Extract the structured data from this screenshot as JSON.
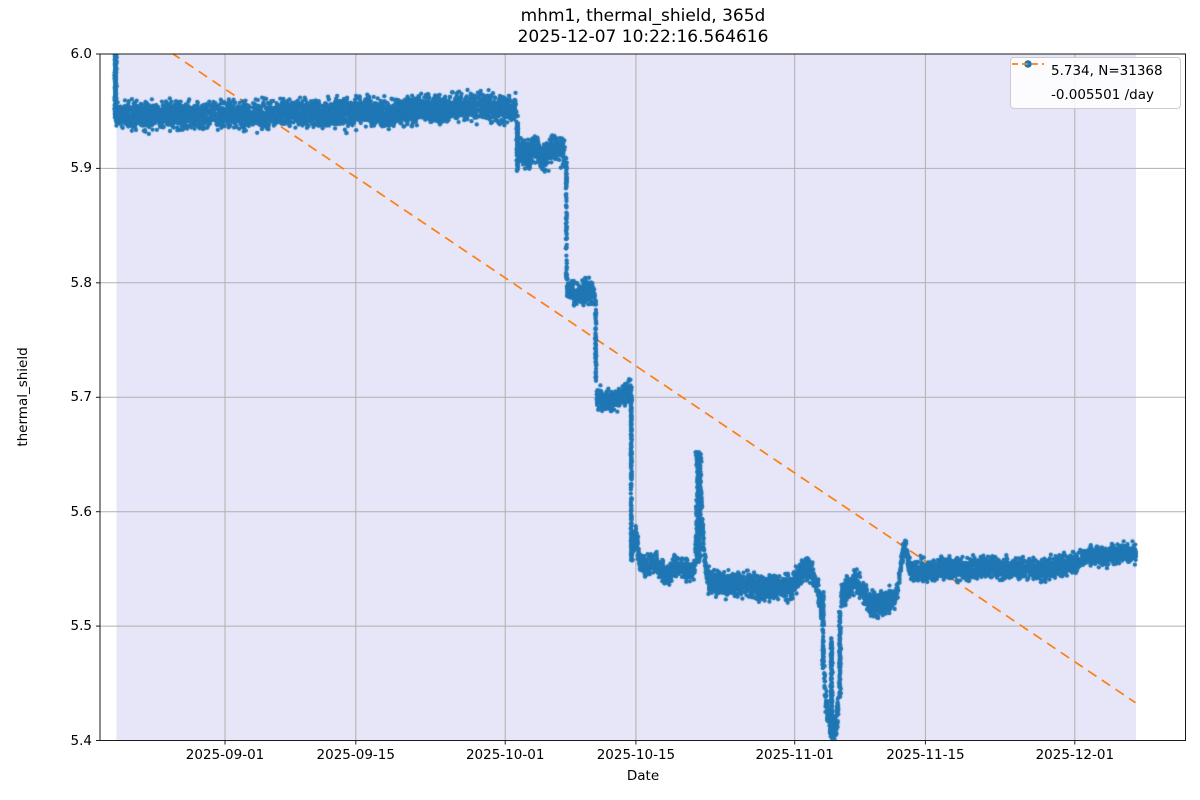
{
  "title": {
    "line1": "mhm1, thermal_shield, 365d",
    "line2": "2025-12-07 10:22:16.564616"
  },
  "axes": {
    "x_label": "Date",
    "y_label": "thermal_shield",
    "x_ticks": [
      {
        "t": 0,
        "label": "2025-09-01"
      },
      {
        "t": 14,
        "label": "2025-09-15"
      },
      {
        "t": 30,
        "label": "2025-10-01"
      },
      {
        "t": 44,
        "label": "2025-10-15"
      },
      {
        "t": 61,
        "label": "2025-11-01"
      },
      {
        "t": 75,
        "label": "2025-11-15"
      },
      {
        "t": 91,
        "label": "2025-12-01"
      }
    ],
    "y_ticks": [
      {
        "v": 5.4,
        "label": "5.4"
      },
      {
        "v": 5.5,
        "label": "5.5"
      },
      {
        "v": 5.6,
        "label": "5.6"
      },
      {
        "v": 5.7,
        "label": "5.7"
      },
      {
        "v": 5.8,
        "label": "5.8"
      },
      {
        "v": 5.9,
        "label": "5.9"
      },
      {
        "v": 6.0,
        "label": "6.0"
      }
    ]
  },
  "legend": {
    "items": [
      {
        "label": "5.734, N=31368",
        "marker": "dot-marker"
      },
      {
        "label": "-0.005501 /day",
        "marker": "dashed-line-marker"
      }
    ]
  },
  "chart_data": {
    "type": "scatter",
    "title": "mhm1, thermal_shield, 365d",
    "subtitle": "2025-12-07 10:22:16.564616",
    "xlabel": "Date",
    "ylabel": "thermal_shield",
    "series_mean": 5.734,
    "n_points": 31368,
    "x_domain": {
      "unit": "days_since_2025-09-01",
      "min": -13.39,
      "max": 102.85
    },
    "y_domain": {
      "min": 5.4,
      "max": 6.0
    },
    "grid": true,
    "data_span": {
      "t0": -11.62,
      "t1": 97.55
    },
    "trend": {
      "slope_per_day": -0.005501,
      "t_start": -11.6,
      "v_start": 6.0332,
      "t_end": 97.5,
      "v_end": 5.433
    },
    "colors": {
      "series": "#1f77b4",
      "trend": "#ff7f0e",
      "span_shade": "#e6e6f8",
      "grid": "#b0b0b0",
      "spine": "#1a1a1a"
    },
    "segments": [
      {
        "kind": "vline",
        "t": -11.72,
        "v_lo": 5.944,
        "v_hi": 6.001,
        "jitter": 0.1,
        "n": 280
      },
      {
        "kind": "band",
        "noise": 0.0085,
        "path": [
          [
            -11.68,
            5.9475
          ],
          [
            -9,
            5.9455
          ],
          [
            -6,
            5.9475
          ],
          [
            -3,
            5.9455
          ],
          [
            0,
            5.9485
          ],
          [
            3,
            5.9465
          ],
          [
            6,
            5.9495
          ],
          [
            9,
            5.9475
          ],
          [
            12,
            5.949
          ],
          [
            15,
            5.9505
          ],
          [
            18,
            5.9485
          ],
          [
            21,
            5.9525
          ],
          [
            24,
            5.9515
          ],
          [
            27,
            5.9545
          ],
          [
            29.5,
            5.9525
          ],
          [
            31.2,
            5.9535
          ]
        ]
      },
      {
        "kind": "vline",
        "t": 31.3,
        "v_lo": 5.897,
        "v_hi": 5.946,
        "jitter": 0.08,
        "n": 100
      },
      {
        "kind": "band",
        "noise": 0.0085,
        "path": [
          [
            31.4,
            5.9195
          ],
          [
            32.3,
            5.91
          ],
          [
            33.2,
            5.918
          ],
          [
            34.1,
            5.909
          ],
          [
            35.2,
            5.92
          ],
          [
            36.4,
            5.915
          ]
        ]
      },
      {
        "kind": "vline",
        "t": 36.55,
        "v_lo": 5.803,
        "v_hi": 5.91,
        "jitter": 0.06,
        "n": 80
      },
      {
        "kind": "band",
        "noise": 0.0072,
        "path": [
          [
            36.6,
            5.796
          ],
          [
            37.6,
            5.79
          ],
          [
            38.6,
            5.793
          ],
          [
            39.6,
            5.791
          ]
        ]
      },
      {
        "kind": "vline",
        "t": 39.7,
        "v_lo": 5.714,
        "v_hi": 5.786,
        "jitter": 0.06,
        "n": 65
      },
      {
        "kind": "band",
        "noise": 0.0068,
        "path": [
          [
            39.78,
            5.7
          ],
          [
            41,
            5.6965
          ],
          [
            42.2,
            5.6995
          ],
          [
            43.1,
            5.703
          ],
          [
            43.42,
            5.706
          ]
        ]
      },
      {
        "kind": "vline",
        "t": 43.5,
        "v_lo": 5.557,
        "v_hi": 5.709,
        "jitter": 0.06,
        "n": 170
      },
      {
        "kind": "band",
        "noise": 0.0065,
        "path": [
          [
            43.56,
            5.563
          ],
          [
            43.95,
            5.581
          ],
          [
            44.35,
            5.56
          ],
          [
            45.1,
            5.5515
          ],
          [
            46.2,
            5.555
          ],
          [
            47.2,
            5.544
          ],
          [
            48.2,
            5.552
          ],
          [
            49.3,
            5.548
          ],
          [
            50.3,
            5.55
          ]
        ]
      },
      {
        "kind": "vline",
        "t": 50.72,
        "v_lo": 5.556,
        "v_hi": 5.652,
        "jitter": 0.26,
        "n": 340
      },
      {
        "kind": "band",
        "noise": 0.0058,
        "path": [
          [
            50.35,
            5.56
          ],
          [
            50.72,
            5.64
          ],
          [
            51.0,
            5.608
          ],
          [
            51.35,
            5.558
          ],
          [
            51.65,
            5.542
          ]
        ]
      },
      {
        "kind": "band",
        "noise": 0.0075,
        "path": [
          [
            51.7,
            5.539
          ],
          [
            53.5,
            5.5365
          ],
          [
            55.5,
            5.5355
          ],
          [
            57.5,
            5.534
          ],
          [
            59.5,
            5.533
          ],
          [
            60.8,
            5.5345
          ],
          [
            61.6,
            5.5465
          ],
          [
            62.3,
            5.551
          ],
          [
            62.9,
            5.545
          ],
          [
            63.5,
            5.534
          ],
          [
            63.9,
            5.51
          ]
        ]
      },
      {
        "kind": "vline",
        "t": 64.05,
        "v_lo": 5.465,
        "v_hi": 5.53,
        "jitter": 0.07,
        "n": 90
      },
      {
        "kind": "band",
        "noise": 0.01,
        "path": [
          [
            64.0,
            5.475
          ],
          [
            64.4,
            5.428
          ],
          [
            64.9,
            5.408
          ],
          [
            65.4,
            5.412
          ],
          [
            65.7,
            5.435
          ]
        ]
      },
      {
        "kind": "vline",
        "t": 64.95,
        "v_lo": 5.401,
        "v_hi": 5.49,
        "jitter": 0.1,
        "n": 130
      },
      {
        "kind": "vline",
        "t": 65.85,
        "v_lo": 5.438,
        "v_hi": 5.513,
        "jitter": 0.08,
        "n": 110
      },
      {
        "kind": "band",
        "noise": 0.0078,
        "path": [
          [
            65.95,
            5.522
          ],
          [
            66.6,
            5.531
          ],
          [
            67.4,
            5.54
          ],
          [
            68.1,
            5.532
          ],
          [
            68.9,
            5.5205
          ],
          [
            69.8,
            5.517
          ],
          [
            70.7,
            5.5215
          ],
          [
            71.7,
            5.524
          ],
          [
            72.1,
            5.531
          ]
        ]
      },
      {
        "kind": "band",
        "noise": 0.0058,
        "path": [
          [
            72.15,
            5.538
          ],
          [
            72.6,
            5.564
          ],
          [
            72.88,
            5.571
          ],
          [
            73.2,
            5.553
          ],
          [
            73.55,
            5.546
          ]
        ]
      },
      {
        "kind": "band",
        "noise": 0.0065,
        "path": [
          [
            73.6,
            5.548
          ],
          [
            75.5,
            5.549
          ],
          [
            77.5,
            5.5505
          ],
          [
            79.5,
            5.549
          ],
          [
            81.5,
            5.5515
          ],
          [
            83.5,
            5.5495
          ],
          [
            85.5,
            5.5505
          ],
          [
            87.5,
            5.5485
          ],
          [
            89.5,
            5.5525
          ],
          [
            91.4,
            5.556
          ]
        ]
      },
      {
        "kind": "band",
        "noise": 0.0058,
        "path": [
          [
            91.5,
            5.558
          ],
          [
            93.0,
            5.562
          ],
          [
            94.5,
            5.561
          ],
          [
            96.0,
            5.564
          ],
          [
            97.55,
            5.5625
          ]
        ]
      },
      {
        "kind": "dot",
        "t": 13.0,
        "v": 5.931
      }
    ]
  }
}
